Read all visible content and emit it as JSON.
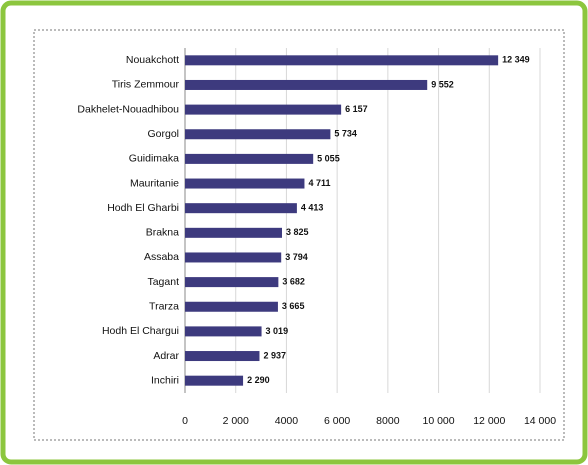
{
  "chart_data": {
    "type": "bar",
    "orientation": "horizontal",
    "categories": [
      "Nouakchott",
      "Tiris Zemmour",
      "Dakhelet-Nouadhibou",
      "Gorgol",
      "Guidimaka",
      "Mauritanie",
      "Hodh El Gharbi",
      "Brakna",
      "Assaba",
      "Tagant",
      "Trarza",
      "Hodh El Chargui",
      "Adrar",
      "Inchiri"
    ],
    "values": [
      12349,
      9552,
      6157,
      5734,
      5055,
      4711,
      4413,
      3825,
      3794,
      3682,
      3665,
      3019,
      2937,
      2290
    ],
    "value_labels": [
      "12 349",
      "9 552",
      "6 157",
      "5 734",
      "5 055",
      "4 711",
      "4 413",
      "3 825",
      "3 794",
      "3 682",
      "3 665",
      "3 019",
      "2 937",
      "2 290"
    ],
    "color": "#3d3a7e",
    "xlim": [
      0,
      14000
    ],
    "xticks": [
      0,
      {
        "value": 2000,
        "label": "2 000"
      },
      {
        "value": 4000,
        "label": "4000"
      },
      {
        "value": 6000,
        "label": "6 000"
      },
      {
        "value": 8000,
        "label": "8000"
      },
      {
        "value": 10000,
        "label": "10 000"
      },
      {
        "value": 12000,
        "label": "12 000"
      },
      {
        "value": 14000,
        "label": "14 000"
      }
    ],
    "grid": true
  }
}
